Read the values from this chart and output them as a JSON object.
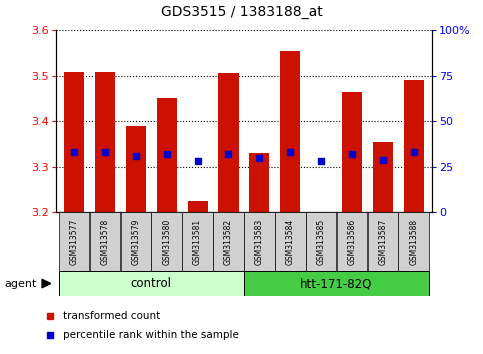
{
  "title": "GDS3515 / 1383188_at",
  "samples": [
    "GSM313577",
    "GSM313578",
    "GSM313579",
    "GSM313580",
    "GSM313581",
    "GSM313582",
    "GSM313583",
    "GSM313584",
    "GSM313585",
    "GSM313586",
    "GSM313587",
    "GSM313588"
  ],
  "transformed_count": [
    3.507,
    3.508,
    3.39,
    3.45,
    3.225,
    3.505,
    3.33,
    3.555,
    3.2,
    3.465,
    3.355,
    3.49
  ],
  "percentile_rank": [
    33,
    33,
    31,
    32,
    28,
    32,
    30,
    33,
    28,
    32,
    29,
    33
  ],
  "ylim_left": [
    3.2,
    3.6
  ],
  "ylim_right": [
    0,
    100
  ],
  "yticks_left": [
    3.2,
    3.3,
    3.4,
    3.5,
    3.6
  ],
  "yticks_right": [
    0,
    25,
    50,
    75,
    100
  ],
  "ytick_labels_right": [
    "0",
    "25",
    "50",
    "75",
    "100%"
  ],
  "bar_color": "#cc1100",
  "dot_color": "#0000cc",
  "groups": [
    {
      "label": "control",
      "start": 0,
      "end": 5,
      "color": "#ccffcc"
    },
    {
      "label": "htt-171-82Q",
      "start": 6,
      "end": 11,
      "color": "#44cc44"
    }
  ],
  "legend_items": [
    {
      "label": "transformed count",
      "color": "#cc1100"
    },
    {
      "label": "percentile rank within the sample",
      "color": "#0000cc"
    }
  ],
  "base_value": 3.2,
  "sample_label_color": "#d0d0d0"
}
